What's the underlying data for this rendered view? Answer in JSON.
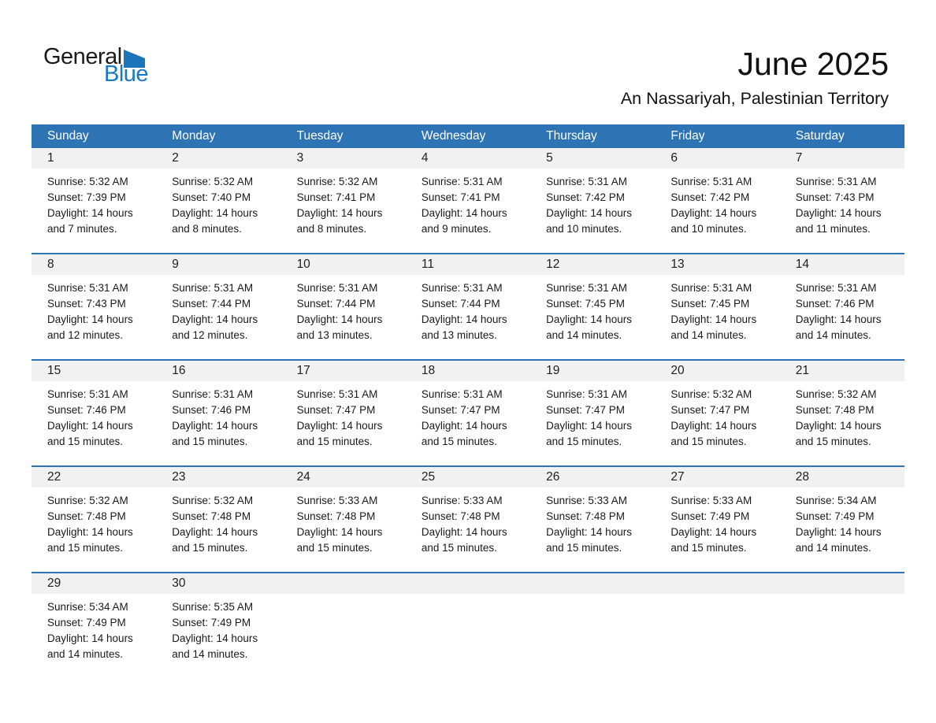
{
  "logo": {
    "general": "General",
    "blue": "Blue"
  },
  "header": {
    "title": "June 2025",
    "subtitle": "An Nassariyah, Palestinian Territory"
  },
  "colors": {
    "header_bg": "#2E74B5",
    "week_border": "#2E74B5",
    "day_band_bg": "#F1F1F1",
    "header_text": "#FFFFFF",
    "logo_blue_text": "#1779C4",
    "logo_triangle": "#1B75BB"
  },
  "calendar": {
    "weekdays": [
      "Sunday",
      "Monday",
      "Tuesday",
      "Wednesday",
      "Thursday",
      "Friday",
      "Saturday"
    ],
    "weeks": [
      [
        {
          "day": "1",
          "sunrise": "Sunrise: 5:32 AM",
          "sunset": "Sunset: 7:39 PM",
          "daylight": "Daylight: 14 hours and 7 minutes."
        },
        {
          "day": "2",
          "sunrise": "Sunrise: 5:32 AM",
          "sunset": "Sunset: 7:40 PM",
          "daylight": "Daylight: 14 hours and 8 minutes."
        },
        {
          "day": "3",
          "sunrise": "Sunrise: 5:32 AM",
          "sunset": "Sunset: 7:41 PM",
          "daylight": "Daylight: 14 hours and 8 minutes."
        },
        {
          "day": "4",
          "sunrise": "Sunrise: 5:31 AM",
          "sunset": "Sunset: 7:41 PM",
          "daylight": "Daylight: 14 hours and 9 minutes."
        },
        {
          "day": "5",
          "sunrise": "Sunrise: 5:31 AM",
          "sunset": "Sunset: 7:42 PM",
          "daylight": "Daylight: 14 hours and 10 minutes."
        },
        {
          "day": "6",
          "sunrise": "Sunrise: 5:31 AM",
          "sunset": "Sunset: 7:42 PM",
          "daylight": "Daylight: 14 hours and 10 minutes."
        },
        {
          "day": "7",
          "sunrise": "Sunrise: 5:31 AM",
          "sunset": "Sunset: 7:43 PM",
          "daylight": "Daylight: 14 hours and 11 minutes."
        }
      ],
      [
        {
          "day": "8",
          "sunrise": "Sunrise: 5:31 AM",
          "sunset": "Sunset: 7:43 PM",
          "daylight": "Daylight: 14 hours and 12 minutes."
        },
        {
          "day": "9",
          "sunrise": "Sunrise: 5:31 AM",
          "sunset": "Sunset: 7:44 PM",
          "daylight": "Daylight: 14 hours and 12 minutes."
        },
        {
          "day": "10",
          "sunrise": "Sunrise: 5:31 AM",
          "sunset": "Sunset: 7:44 PM",
          "daylight": "Daylight: 14 hours and 13 minutes."
        },
        {
          "day": "11",
          "sunrise": "Sunrise: 5:31 AM",
          "sunset": "Sunset: 7:44 PM",
          "daylight": "Daylight: 14 hours and 13 minutes."
        },
        {
          "day": "12",
          "sunrise": "Sunrise: 5:31 AM",
          "sunset": "Sunset: 7:45 PM",
          "daylight": "Daylight: 14 hours and 14 minutes."
        },
        {
          "day": "13",
          "sunrise": "Sunrise: 5:31 AM",
          "sunset": "Sunset: 7:45 PM",
          "daylight": "Daylight: 14 hours and 14 minutes."
        },
        {
          "day": "14",
          "sunrise": "Sunrise: 5:31 AM",
          "sunset": "Sunset: 7:46 PM",
          "daylight": "Daylight: 14 hours and 14 minutes."
        }
      ],
      [
        {
          "day": "15",
          "sunrise": "Sunrise: 5:31 AM",
          "sunset": "Sunset: 7:46 PM",
          "daylight": "Daylight: 14 hours and 15 minutes."
        },
        {
          "day": "16",
          "sunrise": "Sunrise: 5:31 AM",
          "sunset": "Sunset: 7:46 PM",
          "daylight": "Daylight: 14 hours and 15 minutes."
        },
        {
          "day": "17",
          "sunrise": "Sunrise: 5:31 AM",
          "sunset": "Sunset: 7:47 PM",
          "daylight": "Daylight: 14 hours and 15 minutes."
        },
        {
          "day": "18",
          "sunrise": "Sunrise: 5:31 AM",
          "sunset": "Sunset: 7:47 PM",
          "daylight": "Daylight: 14 hours and 15 minutes."
        },
        {
          "day": "19",
          "sunrise": "Sunrise: 5:31 AM",
          "sunset": "Sunset: 7:47 PM",
          "daylight": "Daylight: 14 hours and 15 minutes."
        },
        {
          "day": "20",
          "sunrise": "Sunrise: 5:32 AM",
          "sunset": "Sunset: 7:47 PM",
          "daylight": "Daylight: 14 hours and 15 minutes."
        },
        {
          "day": "21",
          "sunrise": "Sunrise: 5:32 AM",
          "sunset": "Sunset: 7:48 PM",
          "daylight": "Daylight: 14 hours and 15 minutes."
        }
      ],
      [
        {
          "day": "22",
          "sunrise": "Sunrise: 5:32 AM",
          "sunset": "Sunset: 7:48 PM",
          "daylight": "Daylight: 14 hours and 15 minutes."
        },
        {
          "day": "23",
          "sunrise": "Sunrise: 5:32 AM",
          "sunset": "Sunset: 7:48 PM",
          "daylight": "Daylight: 14 hours and 15 minutes."
        },
        {
          "day": "24",
          "sunrise": "Sunrise: 5:33 AM",
          "sunset": "Sunset: 7:48 PM",
          "daylight": "Daylight: 14 hours and 15 minutes."
        },
        {
          "day": "25",
          "sunrise": "Sunrise: 5:33 AM",
          "sunset": "Sunset: 7:48 PM",
          "daylight": "Daylight: 14 hours and 15 minutes."
        },
        {
          "day": "26",
          "sunrise": "Sunrise: 5:33 AM",
          "sunset": "Sunset: 7:48 PM",
          "daylight": "Daylight: 14 hours and 15 minutes."
        },
        {
          "day": "27",
          "sunrise": "Sunrise: 5:33 AM",
          "sunset": "Sunset: 7:49 PM",
          "daylight": "Daylight: 14 hours and 15 minutes."
        },
        {
          "day": "28",
          "sunrise": "Sunrise: 5:34 AM",
          "sunset": "Sunset: 7:49 PM",
          "daylight": "Daylight: 14 hours and 14 minutes."
        }
      ],
      [
        {
          "day": "29",
          "sunrise": "Sunrise: 5:34 AM",
          "sunset": "Sunset: 7:49 PM",
          "daylight": "Daylight: 14 hours and 14 minutes."
        },
        {
          "day": "30",
          "sunrise": "Sunrise: 5:35 AM",
          "sunset": "Sunset: 7:49 PM",
          "daylight": "Daylight: 14 hours and 14 minutes."
        },
        null,
        null,
        null,
        null,
        null
      ]
    ]
  }
}
